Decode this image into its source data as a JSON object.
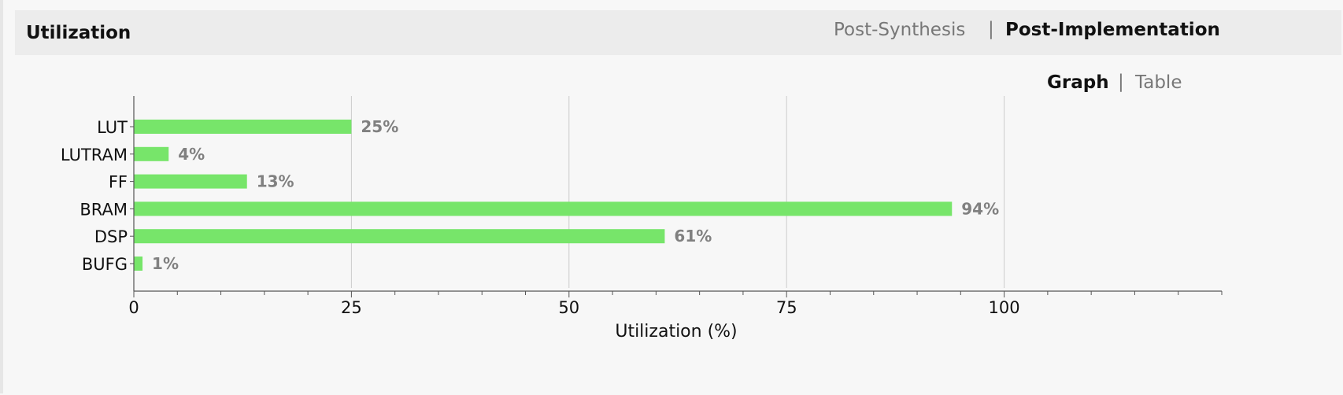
{
  "header": {
    "title": "Utilization",
    "tabs": [
      {
        "label": "Post-Synthesis",
        "active": false
      },
      {
        "label": "Post-Implementation",
        "active": true
      }
    ],
    "tab_separator": "|"
  },
  "view": {
    "options": [
      {
        "label": "Graph",
        "active": true
      },
      {
        "label": "Table",
        "active": false
      }
    ],
    "separator": "|"
  },
  "colors": {
    "bar": "#77e56a",
    "value_label": "#808080",
    "grid": "#cccccc",
    "axis": "#555555"
  },
  "chart_data": {
    "type": "bar",
    "orientation": "horizontal",
    "categories": [
      "LUT",
      "LUTRAM",
      "FF",
      "BRAM",
      "DSP",
      "BUFG"
    ],
    "values": [
      25,
      4,
      13,
      94,
      61,
      1
    ],
    "value_labels": [
      "25%",
      "4%",
      "13%",
      "94%",
      "61%",
      "1%"
    ],
    "xlabel": "Utilization (%)",
    "ylabel": "",
    "xlim": [
      0,
      125
    ],
    "xticks": [
      0,
      25,
      50,
      75,
      100
    ],
    "xtick_labels": [
      "0",
      "25",
      "50",
      "75",
      "100"
    ],
    "grid": true
  }
}
